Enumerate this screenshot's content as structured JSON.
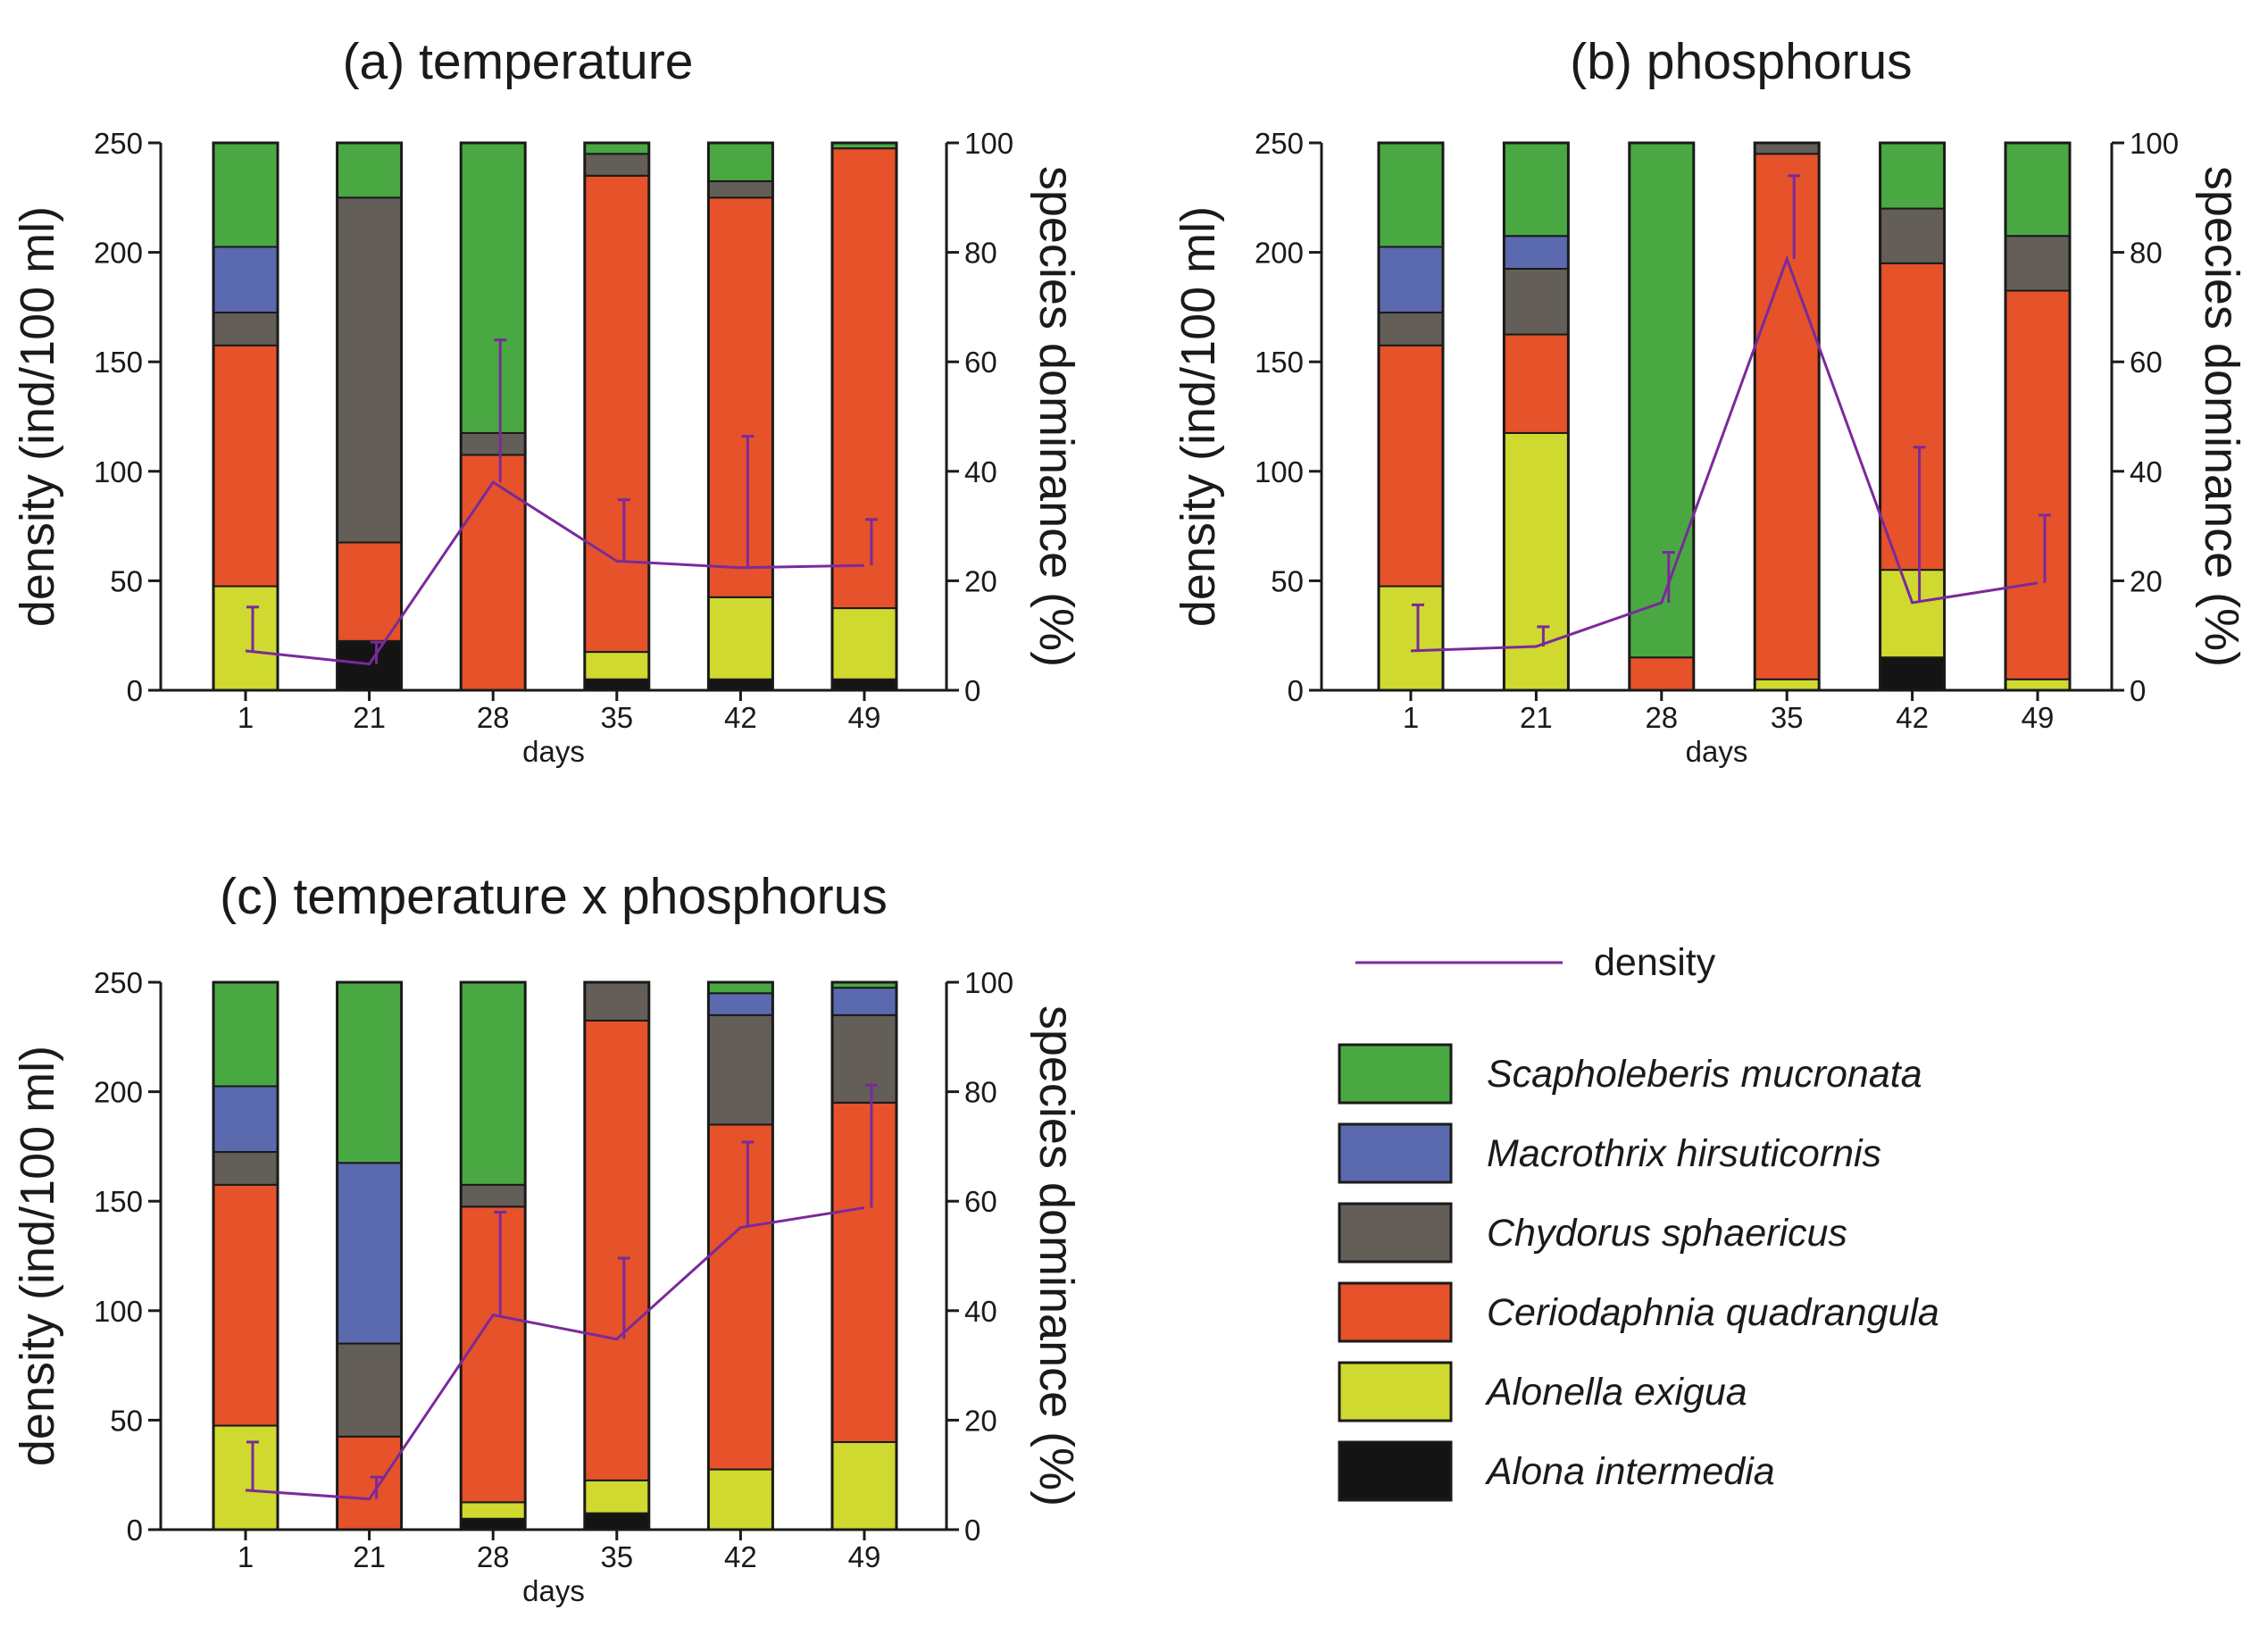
{
  "chart_data": [
    {
      "type": "bar",
      "stacked": true,
      "title": "(a) temperature",
      "xlabel": "days",
      "ylabel": "density (ind/100 ml)",
      "y2label": "species dominance (%)",
      "categories": [
        "1",
        "21",
        "28",
        "35",
        "42",
        "49"
      ],
      "ylim": [
        0,
        250
      ],
      "yticks": [
        0,
        50,
        100,
        150,
        200,
        250
      ],
      "y2lim": [
        0,
        100
      ],
      "y2ticks": [
        0,
        20,
        40,
        60,
        80,
        100
      ],
      "series": [
        {
          "name": "Alona intermedia",
          "values": [
            0,
            9,
            0,
            2,
            2,
            2
          ]
        },
        {
          "name": "Alonella exigua",
          "values": [
            19,
            0,
            0,
            5,
            15,
            13
          ]
        },
        {
          "name": "Ceriodaphnia quadrangula",
          "values": [
            44,
            18,
            43,
            87,
            73,
            84
          ]
        },
        {
          "name": "Chydorus sphaericus",
          "values": [
            6,
            63,
            4,
            4,
            3,
            0
          ]
        },
        {
          "name": "Macrothrix hirsuticornis",
          "values": [
            12,
            0,
            0,
            0,
            0,
            0
          ]
        },
        {
          "name": "Scapholeberis mucronata",
          "values": [
            19,
            10,
            53,
            2,
            7,
            1
          ]
        }
      ],
      "density": {
        "values": [
          18,
          12,
          95,
          59,
          56,
          57
        ],
        "error_upper": [
          38,
          22,
          160,
          87,
          116,
          78
        ]
      }
    },
    {
      "type": "bar",
      "stacked": true,
      "title": "(b) phosphorus",
      "xlabel": "days",
      "ylabel": "density (ind/100 ml)",
      "y2label": "species dominance (%)",
      "categories": [
        "1",
        "21",
        "28",
        "35",
        "42",
        "49"
      ],
      "ylim": [
        0,
        250
      ],
      "yticks": [
        0,
        50,
        100,
        150,
        200,
        250
      ],
      "y2lim": [
        0,
        100
      ],
      "y2ticks": [
        0,
        20,
        40,
        60,
        80,
        100
      ],
      "series": [
        {
          "name": "Alona intermedia",
          "values": [
            0,
            0,
            0,
            0,
            6,
            0
          ]
        },
        {
          "name": "Alonella exigua",
          "values": [
            19,
            47,
            0,
            2,
            16,
            2
          ]
        },
        {
          "name": "Ceriodaphnia quadrangula",
          "values": [
            44,
            18,
            6,
            96,
            56,
            71
          ]
        },
        {
          "name": "Chydorus sphaericus",
          "values": [
            6,
            12,
            0,
            2,
            10,
            10
          ]
        },
        {
          "name": "Macrothrix hirsuticornis",
          "values": [
            12,
            6,
            0,
            0,
            0,
            0
          ]
        },
        {
          "name": "Scapholeberis mucronata",
          "values": [
            19,
            17,
            94,
            0,
            12,
            17
          ]
        }
      ],
      "density": {
        "values": [
          18,
          20,
          40,
          197,
          40,
          49
        ],
        "error_upper": [
          39,
          29,
          63,
          235,
          111,
          80
        ]
      }
    },
    {
      "type": "bar",
      "stacked": true,
      "title": "(c) temperature x phosphorus",
      "xlabel": "days",
      "ylabel": "density (ind/100 ml)",
      "y2label": "species dominance (%)",
      "categories": [
        "1",
        "21",
        "28",
        "35",
        "42",
        "49"
      ],
      "ylim": [
        0,
        250
      ],
      "yticks": [
        0,
        50,
        100,
        150,
        200,
        250
      ],
      "y2lim": [
        0,
        100
      ],
      "y2ticks": [
        0,
        20,
        40,
        60,
        80,
        100
      ],
      "series": [
        {
          "name": "Alona intermedia",
          "values": [
            0,
            0,
            2,
            3,
            0,
            0
          ]
        },
        {
          "name": "Alonella exigua",
          "values": [
            19,
            0,
            3,
            6,
            11,
            16
          ]
        },
        {
          "name": "Ceriodaphnia quadrangula",
          "values": [
            44,
            17,
            54,
            84,
            63,
            62
          ]
        },
        {
          "name": "Chydorus sphaericus",
          "values": [
            6,
            17,
            4,
            7,
            20,
            16
          ]
        },
        {
          "name": "Macrothrix hirsuticornis",
          "values": [
            12,
            33,
            0,
            0,
            4,
            5
          ]
        },
        {
          "name": "Scapholeberis mucronata",
          "values": [
            19,
            33,
            37,
            0,
            2,
            1
          ]
        }
      ],
      "density": {
        "values": [
          18,
          14,
          98,
          87,
          138,
          147
        ],
        "error_upper": [
          40,
          24,
          145,
          124,
          177,
          203
        ]
      }
    }
  ],
  "legend": {
    "line_label": "density",
    "items": [
      {
        "name": "Scapholeberis mucronata",
        "color": "#4aa843"
      },
      {
        "name": "Macrothrix hirsuticornis",
        "color": "#5b6aae"
      },
      {
        "name": "Chydorus sphaericus",
        "color": "#635e58"
      },
      {
        "name": "Ceriodaphnia quadrangula",
        "color": "#e6522a"
      },
      {
        "name": "Alonella exigua",
        "color": "#cfd930"
      },
      {
        "name": "Alona intermedia",
        "color": "#141414"
      }
    ]
  },
  "colors": {
    "Scapholeberis mucronata": "#4aa843",
    "Macrothrix hirsuticornis": "#5b6aae",
    "Chydorus sphaericus": "#635e58",
    "Ceriodaphnia quadrangula": "#e6522a",
    "Alonella exigua": "#cfd930",
    "Alona intermedia": "#141414",
    "density_line": "#7a2a9a",
    "axis": "#1a1a1a"
  }
}
